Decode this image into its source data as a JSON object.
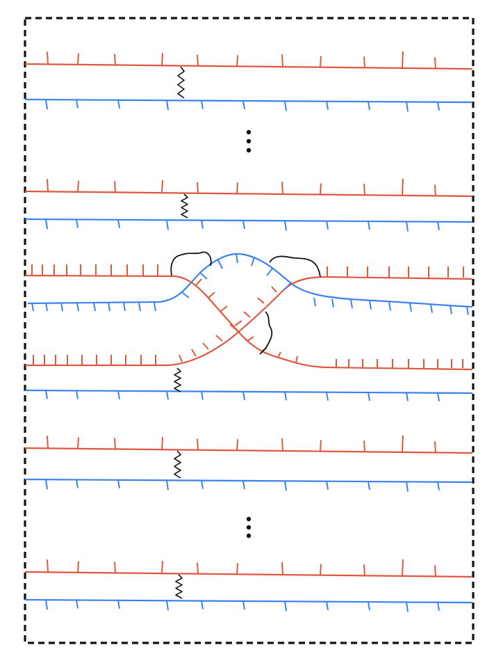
{
  "diagram": {
    "description_free": true,
    "colors": {
      "strand_a": "#e0573f",
      "strand_b": "#3a82f0",
      "link": "#111111",
      "frame": "#111111",
      "background": "#ffffff"
    },
    "frame_style": "dashed",
    "strand_pair_count": 7,
    "ellipsis_count": 2,
    "crossing_count": 1,
    "icons": {
      "ellipsis": "vertical-dots-icon",
      "link": "wavy-link-icon",
      "loop": "curly-loop-icon"
    }
  }
}
